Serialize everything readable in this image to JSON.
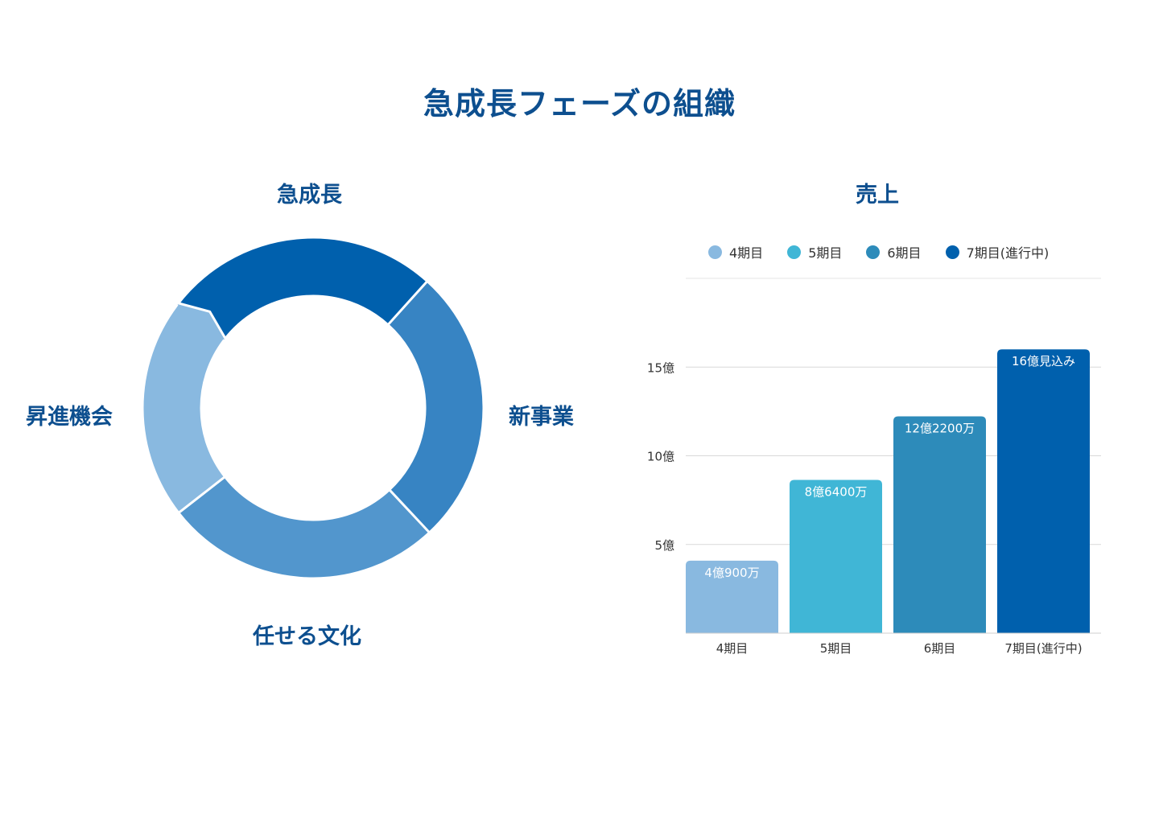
{
  "title": "急成長フェーズの組織",
  "cycle": {
    "labels": {
      "top": "急成長",
      "right": "新事業",
      "bottom": "任せる文化",
      "left": "昇進機会"
    },
    "segments": [
      {
        "name": "急成長",
        "color": "#0060ad"
      },
      {
        "name": "新事業",
        "color": "#3784c3"
      },
      {
        "name": "任せる文化",
        "color": "#5296cd"
      },
      {
        "name": "昇進機会",
        "color": "#89b9e0"
      }
    ]
  },
  "chart_data": {
    "type": "bar",
    "title": "売上",
    "categories": [
      "4期目",
      "5期目",
      "6期目",
      "7期目(進行中)"
    ],
    "values": [
      4.09,
      8.64,
      12.22,
      16.0
    ],
    "value_labels": [
      "4億900万",
      "8億6400万",
      "12億2200万",
      "16億見込み"
    ],
    "colors": [
      "#89b9e0",
      "#40b6d6",
      "#2d8bba",
      "#0060ad"
    ],
    "yticks": [
      5,
      10,
      15
    ],
    "ytick_labels": [
      "5億",
      "10億",
      "15億"
    ],
    "ylim": [
      0,
      20
    ],
    "legend": [
      "4期目",
      "5期目",
      "6期目",
      "7期目(進行中)"
    ],
    "legend_position": "top",
    "grid": true
  }
}
